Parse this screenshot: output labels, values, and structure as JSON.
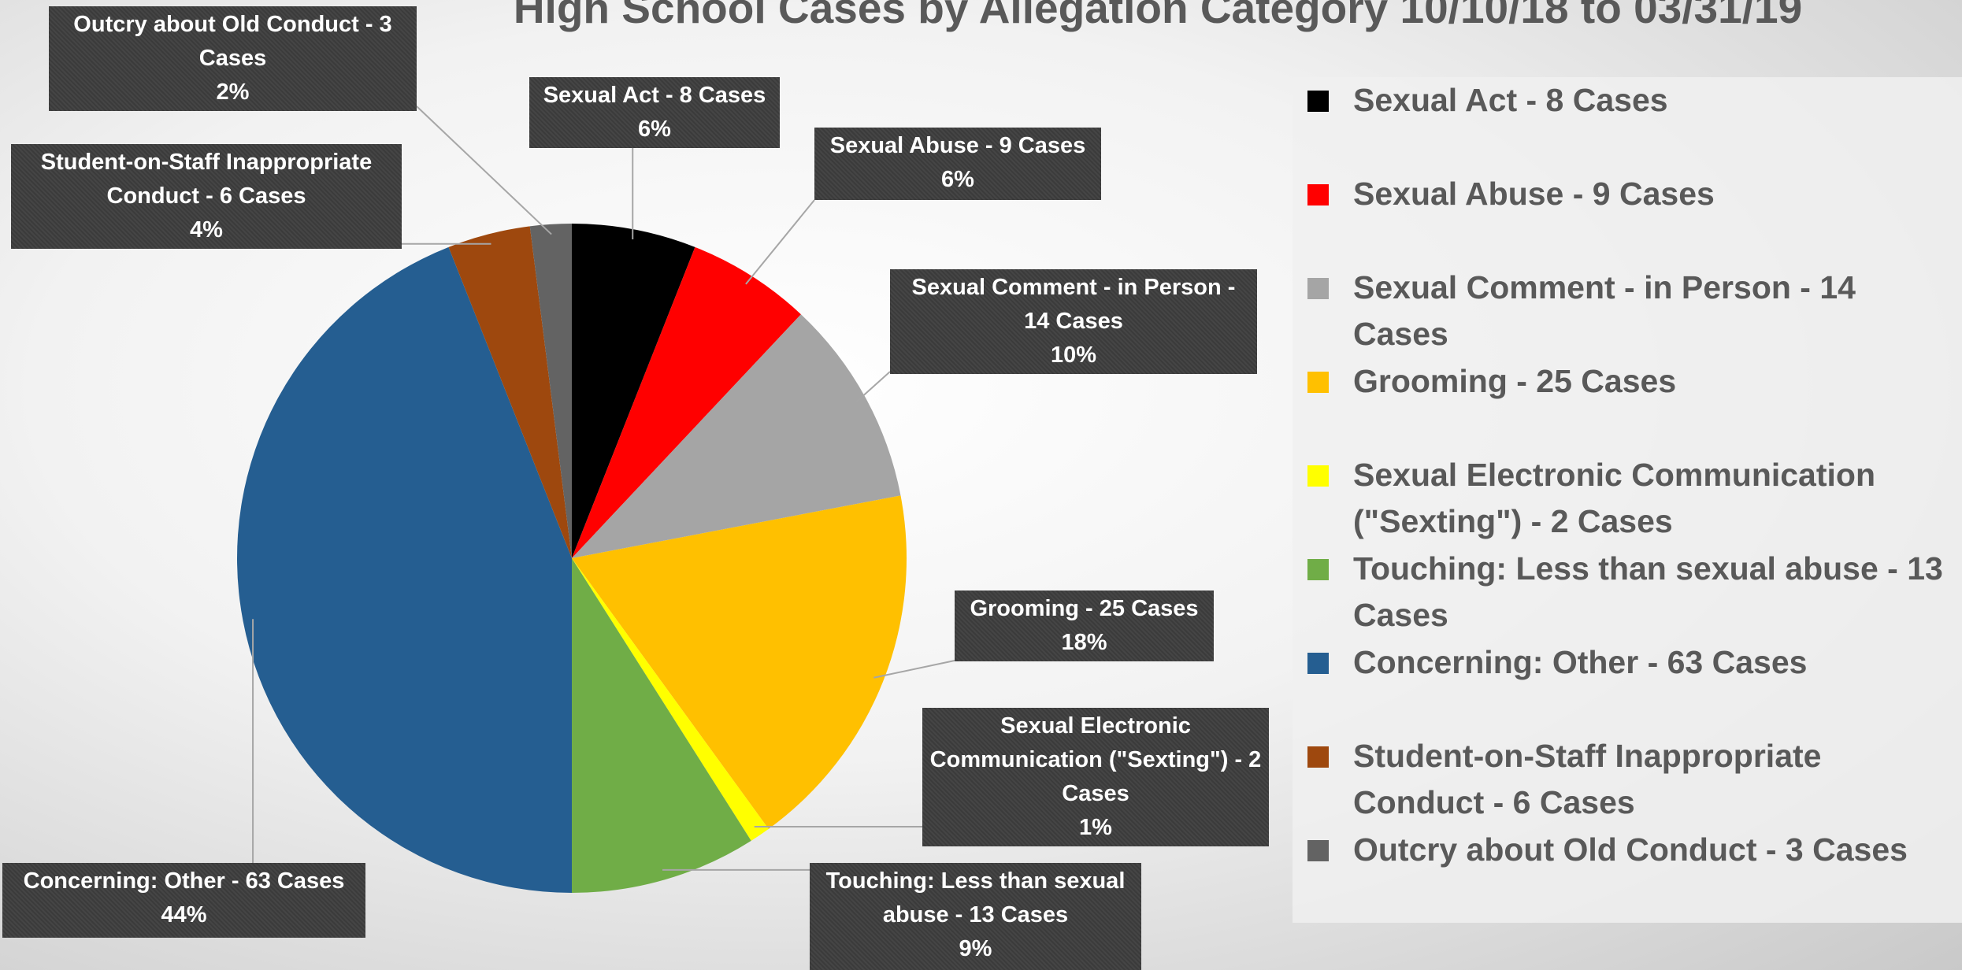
{
  "chart_data": {
    "type": "pie",
    "title": "High School Cases by Allegation Category 10/10/18 to 03/31/19",
    "categories": [
      "Sexual Act - 8 Cases",
      "Sexual Abuse - 9 Cases",
      "Sexual Comment - in Person - 14 Cases",
      "Grooming - 25 Cases",
      "Sexual Electronic Communication (\"Sexting\") - 2 Cases",
      "Touching: Less than sexual abuse - 13 Cases",
      "Concerning: Other - 63 Cases",
      "Student-on-Staff Inappropriate Conduct - 6 Cases",
      "Outcry about Old Conduct - 3 Cases"
    ],
    "values": [
      6,
      6,
      10,
      18,
      1,
      9,
      44,
      4,
      2
    ],
    "value_labels": [
      "6%",
      "6%",
      "10%",
      "18%",
      "1%",
      "9%",
      "44%",
      "4%",
      "2%"
    ],
    "colors": [
      "#000000",
      "#ff0000",
      "#a5a5a5",
      "#ffc000",
      "#ffff00",
      "#70ad47",
      "#255e91",
      "#9e480e",
      "#636363"
    ],
    "legend": "right"
  }
}
